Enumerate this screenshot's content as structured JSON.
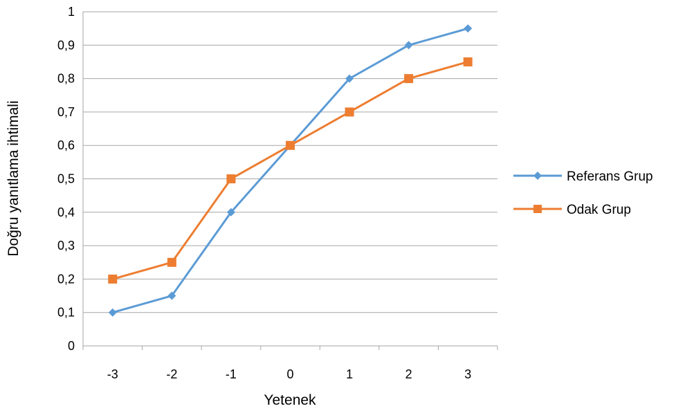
{
  "chart_data": {
    "type": "line",
    "title": "",
    "xlabel": "Yetenek",
    "ylabel": "Doğru yanıtlama ihtimali",
    "x": [
      "-3",
      "-2",
      "-1",
      "0",
      "1",
      "2",
      "3"
    ],
    "ylim": [
      0,
      1
    ],
    "yticks": [
      "0",
      "0,1",
      "0,2",
      "0,3",
      "0,4",
      "0,5",
      "0,6",
      "0,7",
      "0,8",
      "0,9",
      "1"
    ],
    "grid": "horizontal",
    "legend_position": "right",
    "series": [
      {
        "name": "Referans Grup",
        "color": "#5b9bd5",
        "marker": "diamond",
        "values": [
          0.1,
          0.15,
          0.4,
          0.6,
          0.8,
          0.9,
          0.95
        ]
      },
      {
        "name": "Odak Grup",
        "color": "#ed7d31",
        "marker": "square",
        "values": [
          0.2,
          0.25,
          0.5,
          0.6,
          0.7,
          0.8,
          0.85
        ]
      }
    ]
  }
}
